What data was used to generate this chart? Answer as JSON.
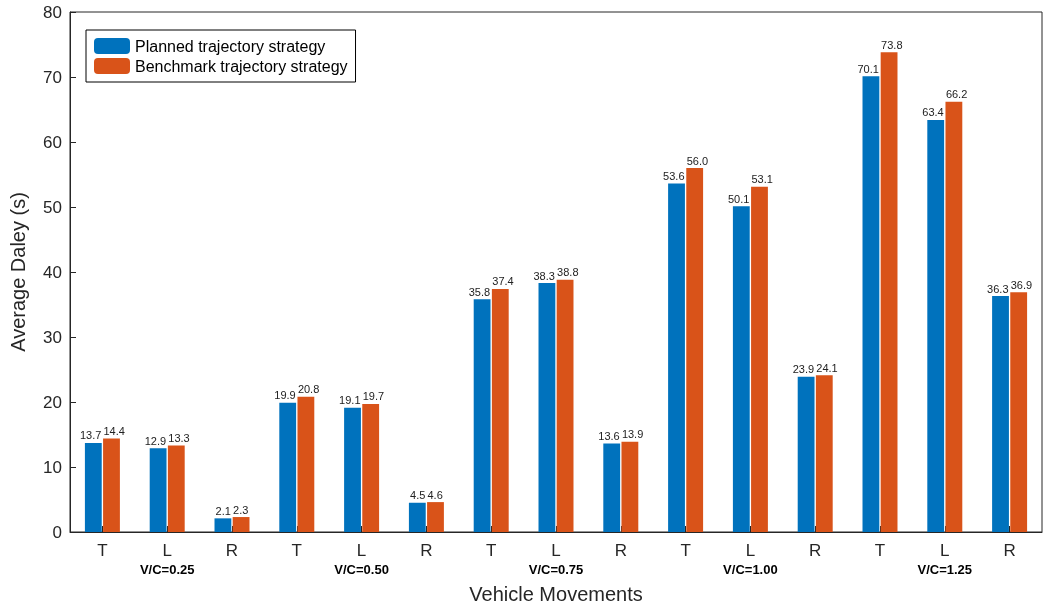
{
  "chart_data": {
    "type": "bar",
    "xlabel": "Vehicle Movements",
    "ylabel": "Average Daley (s)",
    "categories": [
      "T",
      "L",
      "R",
      "T",
      "L",
      "R",
      "T",
      "L",
      "R",
      "T",
      "L",
      "R",
      "T",
      "L",
      "R"
    ],
    "series": [
      {
        "name": "Planned trajectory strategy",
        "color": "#0072bd",
        "values": [
          13.7,
          12.9,
          2.1,
          19.9,
          19.1,
          4.5,
          35.8,
          38.3,
          13.6,
          53.6,
          50.1,
          23.9,
          70.1,
          63.4,
          36.3
        ],
        "value_labels": [
          "13.7",
          "12.9",
          "2.1",
          "19.9",
          "19.1",
          "4.5",
          "35.8",
          "38.3",
          "13.6",
          "53.6",
          "50.1",
          "23.9",
          "70.1",
          "63.4",
          "36.3"
        ]
      },
      {
        "name": "Benchmark trajectory strategy",
        "color": "#d95319",
        "values": [
          14.4,
          13.3,
          2.3,
          20.8,
          19.7,
          4.6,
          37.4,
          38.8,
          13.9,
          56.0,
          53.1,
          24.1,
          73.8,
          66.2,
          36.9
        ],
        "value_labels": [
          "14.4",
          "13.3",
          "2.3",
          "20.8",
          "19.7",
          "4.6",
          "37.4",
          "38.8",
          "13.9",
          "56.0",
          "53.1",
          "24.1",
          "73.8",
          "66.2",
          "36.9"
        ]
      }
    ],
    "ylim": [
      0,
      80
    ],
    "yticks": [
      0,
      10,
      20,
      30,
      40,
      50,
      60,
      70,
      80
    ],
    "grid": false,
    "legend": "top left",
    "annotations": [
      "V/C=0.25",
      "V/C=0.50",
      "V/C=0.75",
      "V/C=1.00",
      "V/C=1.25"
    ]
  }
}
